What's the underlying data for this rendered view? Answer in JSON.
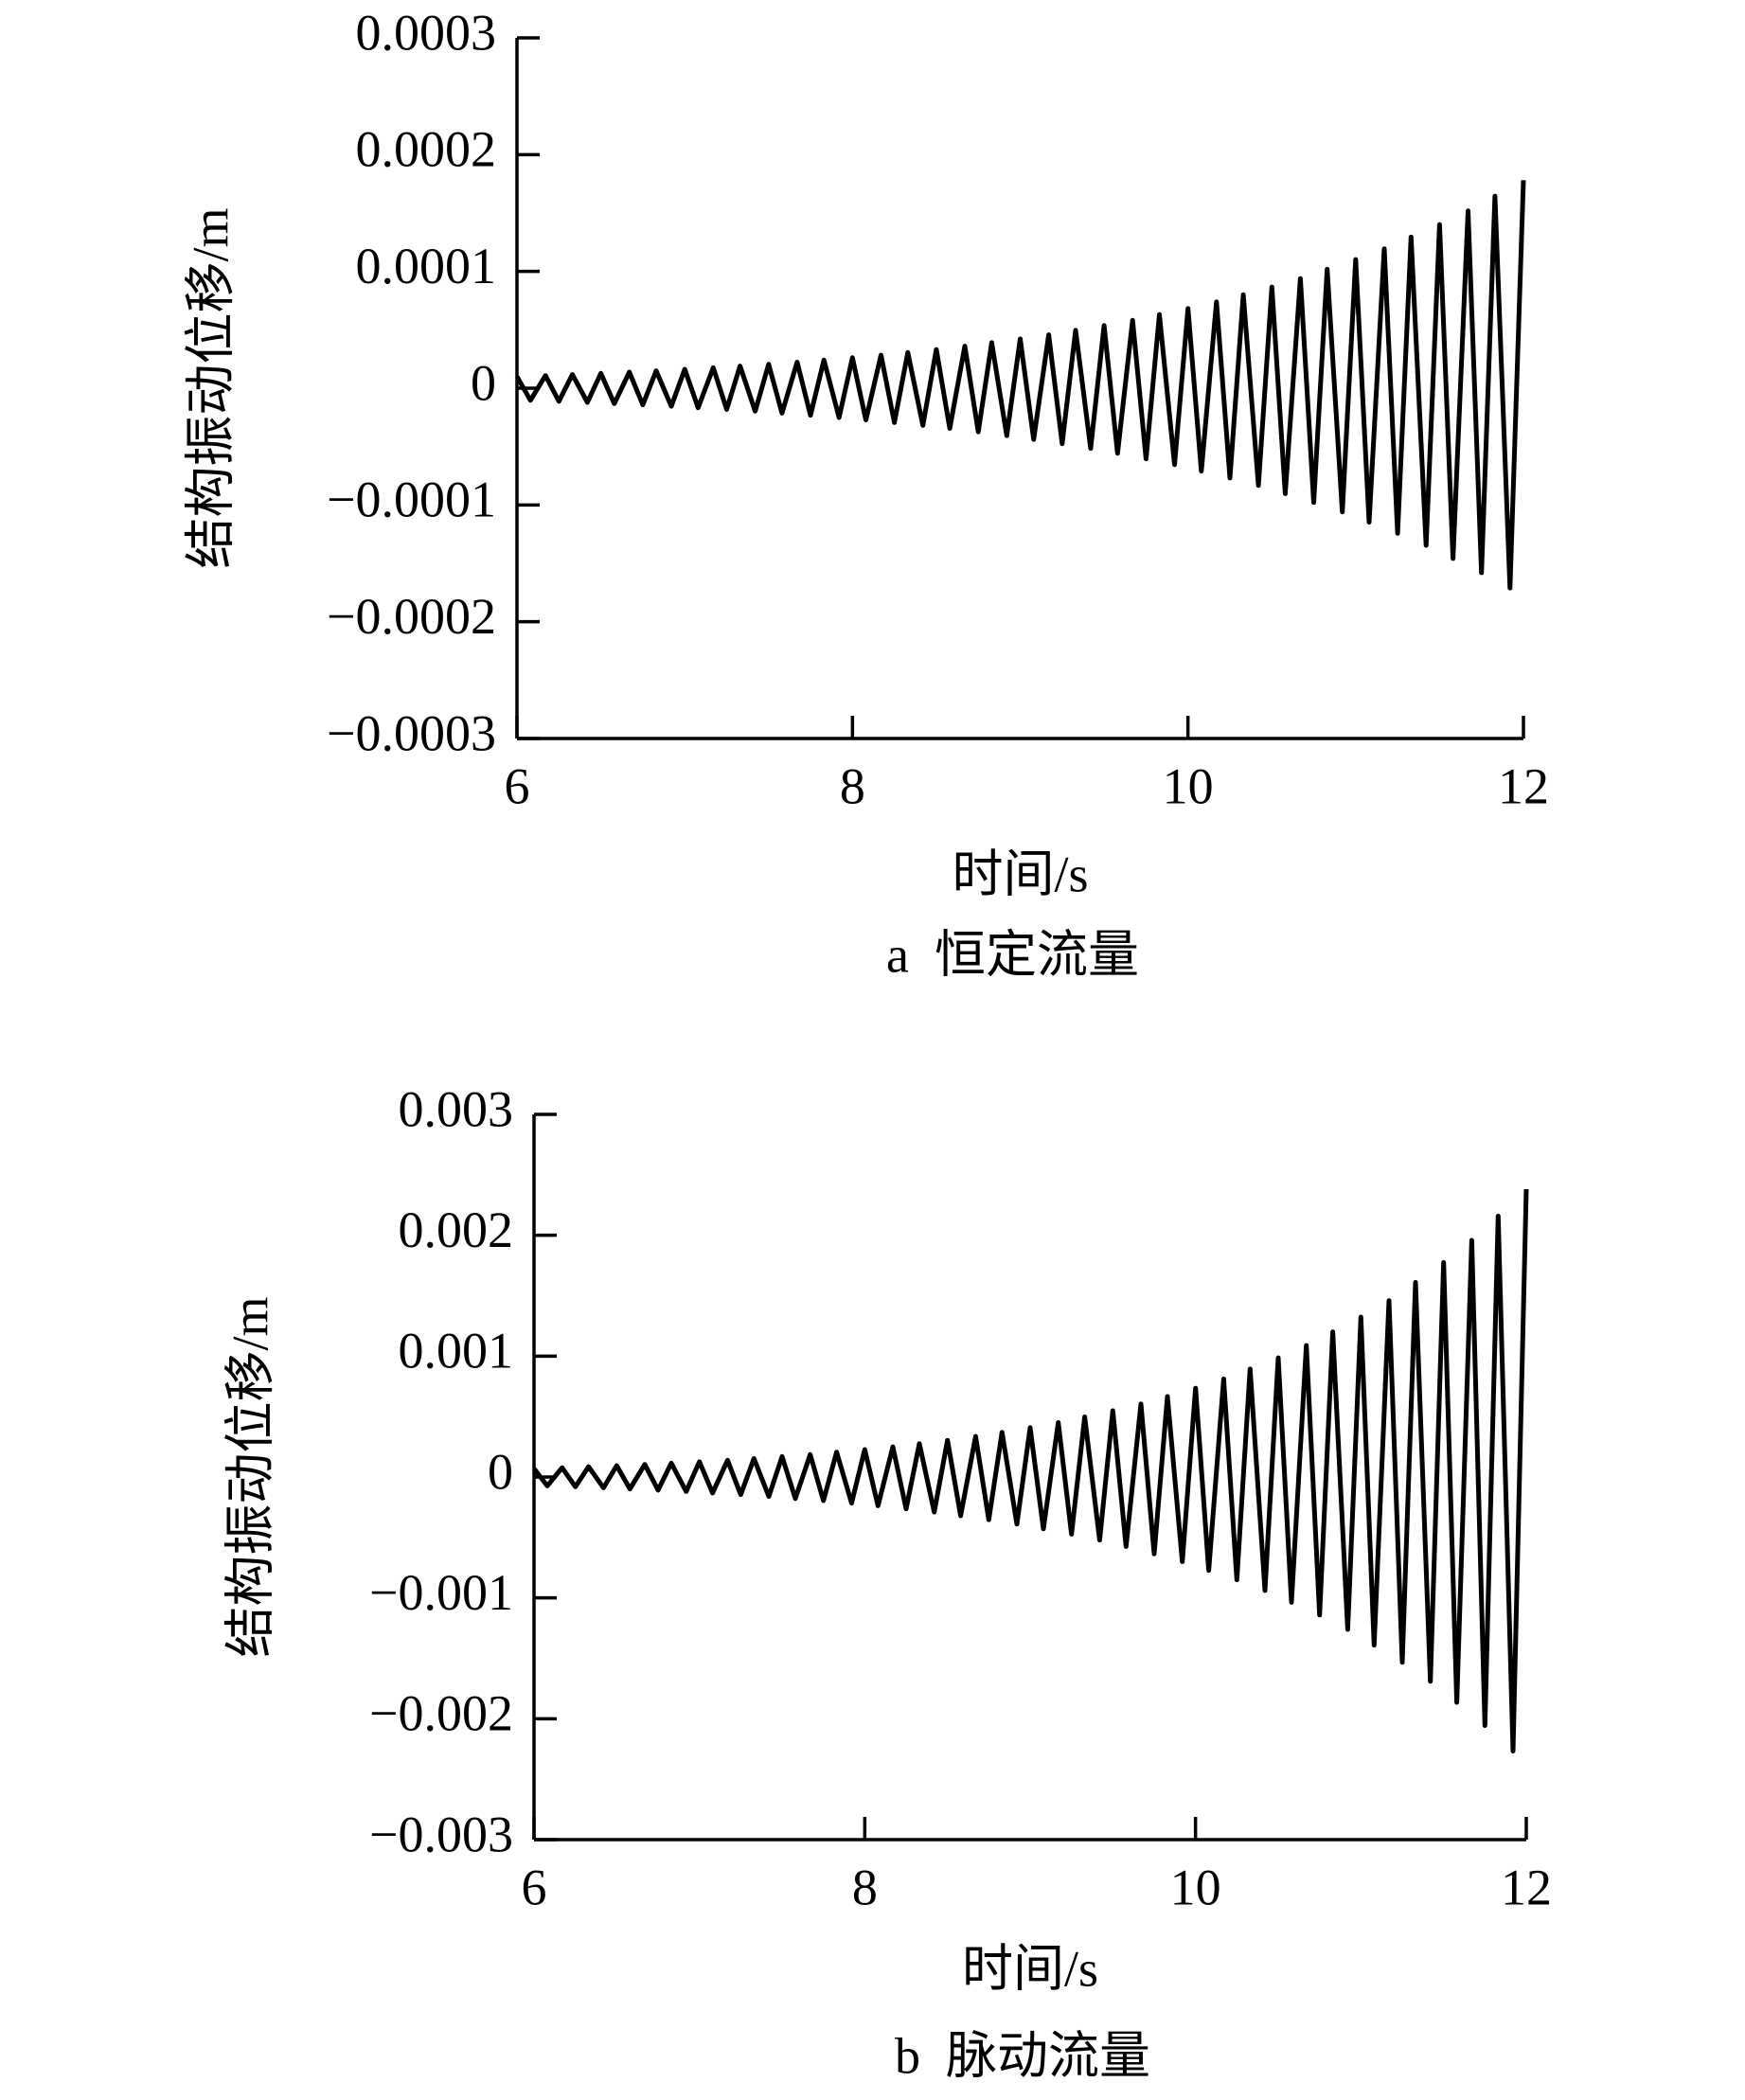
{
  "chart_data": [
    {
      "type": "line",
      "ylabel": "结构振动位移/m",
      "xlabel": "时间/s",
      "caption": "a  恒定流量",
      "color": "#000000",
      "xlim": [
        6,
        12
      ],
      "xticks": [
        6,
        8,
        10,
        12
      ],
      "ylim": [
        -0.0003,
        0.0003
      ],
      "yticks": [
        {
          "value": -0.0003,
          "label": "−0.0003"
        },
        {
          "value": -0.0002,
          "label": "−0.0002"
        },
        {
          "value": -0.0001,
          "label": "−0.0001"
        },
        0,
        0.0001,
        0.0002,
        0.0003
      ],
      "x": [
        6,
        6.08,
        6.17,
        6.25,
        6.33,
        6.42,
        6.5,
        6.58,
        6.67,
        6.75,
        6.83,
        6.92,
        7,
        7.08,
        7.17,
        7.25,
        7.33,
        7.42,
        7.5,
        7.58,
        7.67,
        7.75,
        7.83,
        7.92,
        8,
        8.08,
        8.17,
        8.25,
        8.33,
        8.42,
        8.5,
        8.58,
        8.67,
        8.75,
        8.83,
        8.92,
        9,
        9.08,
        9.17,
        9.25,
        9.33,
        9.42,
        9.5,
        9.58,
        9.67,
        9.75,
        9.83,
        9.92,
        10,
        10.08,
        10.17,
        10.25,
        10.33,
        10.42,
        10.5,
        10.58,
        10.67,
        10.75,
        10.83,
        10.92,
        11,
        11.08,
        11.17,
        11.25,
        11.33,
        11.42,
        11.5,
        11.58,
        11.67,
        11.75,
        11.83,
        11.92,
        12
      ],
      "values": [
        1e-05,
        -1.04e-05,
        1.08e-05,
        -1.13e-05,
        1.17e-05,
        -1.22e-05,
        1.27e-05,
        -1.32e-05,
        1.38e-05,
        -1.43e-05,
        1.49e-05,
        -1.55e-05,
        1.62e-05,
        -1.68e-05,
        1.75e-05,
        -1.82e-05,
        1.9e-05,
        -1.97e-05,
        2.05e-05,
        -2.14e-05,
        2.23e-05,
        -2.32e-05,
        2.41e-05,
        -2.51e-05,
        2.61e-05,
        -2.72e-05,
        2.83e-05,
        -2.94e-05,
        3.06e-05,
        -3.19e-05,
        3.32e-05,
        -3.45e-05,
        3.6e-05,
        -3.74e-05,
        3.9e-05,
        -4.06e-05,
        4.22e-05,
        -4.39e-05,
        4.57e-05,
        -4.75e-05,
        4.95e-05,
        -5.16e-05,
        5.37e-05,
        -5.58e-05,
        5.81e-05,
        -6.05e-05,
        6.3e-05,
        -6.55e-05,
        6.82e-05,
        -7.1e-05,
        7.39e-05,
        -7.69e-05,
        8e-05,
        -8.33e-05,
        8.67e-05,
        -9.03e-05,
        9.39e-05,
        -9.78e-05,
        0.0001018,
        -0.0001059,
        0.0001102,
        -0.0001147,
        0.0001194,
        -0.0001243,
        0.0001294,
        -0.0001346,
        0.0001401,
        -0.0001459,
        0.0001518,
        -0.000158,
        0.0001644,
        -0.0001712,
        0.0001781
      ]
    },
    {
      "type": "line",
      "ylabel": "结构振动位移/m",
      "xlabel": "时间/s",
      "caption": "b  脉动流量",
      "color": "#000000",
      "xlim": [
        6,
        12
      ],
      "xticks": [
        6,
        8,
        10,
        12
      ],
      "ylim": [
        -0.003,
        0.003
      ],
      "yticks": [
        {
          "value": -0.003,
          "label": "−0.003"
        },
        {
          "value": -0.002,
          "label": "−0.002"
        },
        {
          "value": -0.001,
          "label": "−0.001"
        },
        0,
        0.001,
        0.002,
        0.003
      ],
      "x": [
        6,
        6.08,
        6.17,
        6.25,
        6.33,
        6.42,
        6.5,
        6.58,
        6.67,
        6.75,
        6.83,
        6.92,
        7,
        7.08,
        7.17,
        7.25,
        7.33,
        7.42,
        7.5,
        7.58,
        7.67,
        7.75,
        7.83,
        7.92,
        8,
        8.08,
        8.17,
        8.25,
        8.33,
        8.42,
        8.5,
        8.58,
        8.67,
        8.75,
        8.83,
        8.92,
        9,
        9.08,
        9.17,
        9.25,
        9.33,
        9.42,
        9.5,
        9.58,
        9.67,
        9.75,
        9.83,
        9.92,
        10,
        10.08,
        10.17,
        10.25,
        10.33,
        10.42,
        10.5,
        10.58,
        10.67,
        10.75,
        10.83,
        10.92,
        11,
        11.08,
        11.17,
        11.25,
        11.33,
        11.42,
        11.5,
        11.58,
        11.67,
        11.75,
        11.83,
        11.92,
        12
      ],
      "values": [
        7e-05,
        -7.35e-05,
        7.7e-05,
        -8.1e-05,
        8.5e-05,
        -8.9e-05,
        9.4e-05,
        -9.9e-05,
        0.000104,
        -0.000109,
        0.000114,
        -0.00012,
        0.000126,
        -0.000132,
        0.000139,
        -0.000146,
        0.000153,
        -0.000161,
        0.000169,
        -0.000178,
        0.000186,
        -0.000196,
        0.000206,
        -0.000216,
        0.000227,
        -0.000238,
        0.00025,
        -0.000263,
        0.000276,
        -0.00029,
        0.000304,
        -0.00032,
        0.000336,
        -0.000353,
        0.00037,
        -0.000389,
        0.000408,
        -0.000429,
        0.00045,
        -0.000473,
        0.000497,
        -0.000522,
        0.000548,
        -0.000575,
        0.000604,
        -0.000635,
        0.000666,
        -0.0007,
        0.000735,
        -0.000772,
        0.000811,
        -0.000851,
        0.000894,
        -0.000939,
        0.000986,
        -0.001036,
        0.001088,
        -0.001142,
        0.0012,
        -0.00126,
        0.001323,
        -0.00139,
        0.001459,
        -0.001533,
        0.00161,
        -0.00169,
        0.001775,
        -0.001864,
        0.001958,
        -0.002056,
        0.002159,
        -0.002268,
        0.002381
      ]
    }
  ]
}
